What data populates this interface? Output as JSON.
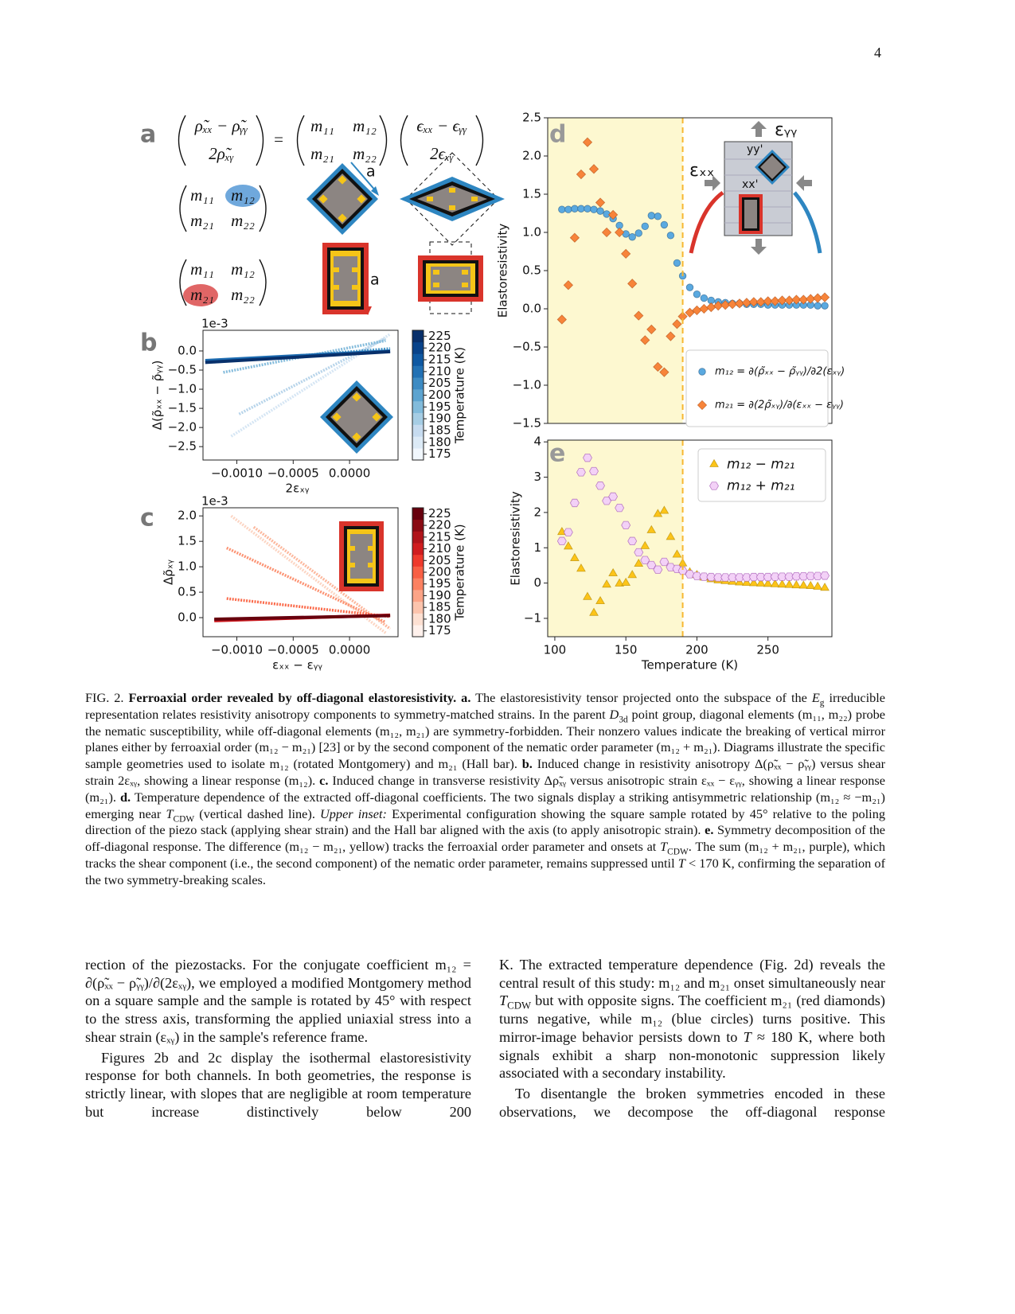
{
  "page_number": "4",
  "panel_a": {
    "label": "a",
    "lhs": [
      "ρ̃ₓₓ − ρ̃ᵧᵧ",
      "2ρ̃ₓᵧ"
    ],
    "equals": "=",
    "matrix": [
      "m₁₁",
      "m₁₂",
      "m₂₁",
      "m₂₂"
    ],
    "rhs": [
      "ϵₓₓ − ϵᵧᵧ",
      "2ϵₓᵧ"
    ],
    "axis_labels": [
      "a",
      "a"
    ]
  },
  "chart_data": [
    {
      "type": "line",
      "panel": "b",
      "offset_label": "1e-3",
      "xlabel": "2εₓᵧ",
      "ylabel": "Δ(ρ̃ₓₓ − ρ̃ᵧᵧ)",
      "xlim": [
        -0.0013,
        0.00043
      ],
      "ylim": [
        -2.85,
        0.54
      ],
      "xticks": [
        {
          "value": -0.001,
          "label": "−0.0010"
        },
        {
          "value": -0.0005,
          "label": "−0.0005"
        },
        {
          "value": 0,
          "label": "0.0000"
        }
      ],
      "yticks": [
        {
          "value": 0,
          "label": "0.0"
        },
        {
          "value": -0.5,
          "label": "−0.5"
        },
        {
          "value": -1,
          "label": "−1.0"
        },
        {
          "value": -1.5,
          "label": "−1.5"
        },
        {
          "value": -2,
          "label": "−2.0"
        },
        {
          "value": -2.5,
          "label": "−2.5"
        }
      ],
      "series": [
        {
          "color": "#d6e6f4",
          "x": [
            -0.00105,
            0.00036
          ],
          "values": [
            -2.23,
            0.44
          ]
        },
        {
          "color": "#b7d4ea",
          "x": [
            -0.00098,
            0.00032
          ],
          "values": [
            -1.65,
            0.33
          ]
        },
        {
          "color": "#85bcdc",
          "x": [
            -0.00112,
            0.00032
          ],
          "values": [
            -0.56,
            0.27
          ]
        },
        {
          "color": "#4a98c9",
          "x": [
            -0.0012,
            0.00036
          ],
          "values": [
            -0.29,
            0.06
          ]
        },
        {
          "color": "#1d6cb1",
          "x": [
            -0.00128,
            0.00036
          ],
          "values": [
            -0.25,
            0.0
          ]
        },
        {
          "color": "#08306b",
          "x": [
            -0.00128,
            0.00036
          ],
          "values": [
            -0.3,
            -0.02
          ]
        }
      ],
      "colorbar": {
        "label": "Temperature (K)",
        "ticks": [
          175,
          180,
          185,
          190,
          195,
          200,
          205,
          210,
          215,
          220,
          225
        ],
        "colors": [
          "#f1f7fd",
          "#dceaf6",
          "#c6dbef",
          "#a6cde4",
          "#82bbdb",
          "#5da4d0",
          "#3d8bc3",
          "#2271b4",
          "#0e58a2",
          "#08438a",
          "#08306b"
        ]
      }
    },
    {
      "type": "line",
      "panel": "c",
      "offset_label": "1e-3",
      "xlabel": "εₓₓ − εᵧᵧ",
      "ylabel": "Δρ̃ₓᵧ",
      "xlim": [
        -0.0013,
        0.00043
      ],
      "ylim": [
        -0.375,
        2.16
      ],
      "xticks": [
        {
          "value": -0.001,
          "label": "−0.0010"
        },
        {
          "value": -0.0005,
          "label": "−0.0005"
        },
        {
          "value": 0,
          "label": "0.0000"
        }
      ],
      "yticks": [
        {
          "value": 0,
          "label": "0.0"
        },
        0.5,
        {
          "value": 1,
          "label": "1.0"
        },
        1.5,
        {
          "value": 2,
          "label": "2.0"
        }
      ],
      "series": [
        {
          "color": "#fcd5c3",
          "x": [
            -0.00105,
            0.00032
          ],
          "values": [
            2.0,
            -0.3
          ]
        },
        {
          "color": "#fcb79c",
          "x": [
            -0.00085,
            0.00036
          ],
          "values": [
            1.78,
            -0.22
          ]
        },
        {
          "color": "#fc9272",
          "x": [
            -0.00109,
            0.00032
          ],
          "values": [
            1.37,
            -0.09
          ]
        },
        {
          "color": "#fb6a4a",
          "x": [
            -0.00109,
            0.00036
          ],
          "values": [
            0.375,
            0.02
          ]
        },
        {
          "color": "#cb181d",
          "x": [
            -0.0012,
            0.00036
          ],
          "values": [
            -0.06,
            0.05
          ]
        },
        {
          "color": "#67000d",
          "x": [
            -0.0012,
            0.00036
          ],
          "values": [
            -0.03,
            0.04
          ]
        }
      ],
      "colorbar": {
        "label": "Temperature (K)",
        "ticks": [
          175,
          180,
          185,
          190,
          195,
          200,
          205,
          210,
          215,
          220,
          225
        ],
        "colors": [
          "#fff1ec",
          "#fde0d2",
          "#fcc4ad",
          "#fca487",
          "#fc8161",
          "#f85f44",
          "#ee3a2c",
          "#d01d1f",
          "#b0141a",
          "#8a0b13",
          "#67000d"
        ]
      }
    },
    {
      "type": "scatter",
      "panel": "d",
      "ylabel": "Elastoresistivity",
      "xlim": [
        95,
        295
      ],
      "ylim": [
        -1.5,
        2.5
      ],
      "yticks": [
        {
          "value": -1.5,
          "label": "−1.5"
        },
        {
          "value": -1,
          "label": "−1.0"
        },
        {
          "value": -0.5,
          "label": "−0.5"
        },
        {
          "value": 0,
          "label": "0.0"
        },
        0.5,
        {
          "value": 1,
          "label": "1.0"
        },
        1.5,
        {
          "value": 2,
          "label": "2.0"
        },
        2.5
      ],
      "shade_until": 190,
      "vline": 190,
      "legend": "lower right",
      "inset_labels": [
        "εᵧᵧ",
        "εₓₓ",
        "yy'",
        "xx'"
      ],
      "x": [
        105,
        109.5,
        114,
        118.5,
        123,
        127.5,
        132,
        136.5,
        141,
        145.5,
        150,
        154.5,
        159,
        163.5,
        168,
        172.5,
        177,
        181.5,
        186,
        190,
        195,
        200,
        205,
        210,
        215,
        220,
        225,
        230,
        235,
        240,
        245,
        250,
        255,
        260,
        265,
        270,
        275,
        280,
        285,
        290
      ],
      "series": [
        {
          "name": "m₁₂ = ∂(ρ̃ₓₓ − ρ̃ᵧᵧ)/∂2(εₓᵧ)",
          "color": "#5aa9e0",
          "marker": "circle",
          "values": [
            1.3,
            1.3,
            1.31,
            1.31,
            1.31,
            1.3,
            1.28,
            1.24,
            1.18,
            1.09,
            0.98,
            0.94,
            0.99,
            1.08,
            1.22,
            1.21,
            1.1,
            0.96,
            0.6,
            0.43,
            0.28,
            0.19,
            0.14,
            0.11,
            0.09,
            0.08,
            0.07,
            0.07,
            0.06,
            0.06,
            0.06,
            0.05,
            0.05,
            0.05,
            0.05,
            0.05,
            0.05,
            0.05,
            0.04,
            0.04
          ]
        },
        {
          "name": "m₂₁ = ∂(2ρ̃ₓᵧ)/∂(εₓₓ − εᵧᵧ)",
          "color": "#f7843a",
          "marker": "diamond",
          "values": [
            -0.14,
            0.31,
            0.93,
            1.76,
            2.18,
            1.83,
            1.39,
            1.0,
            1.23,
            1.0,
            0.72,
            0.33,
            -0.09,
            -0.41,
            -0.27,
            -0.76,
            -0.83,
            -0.36,
            -0.2,
            -0.1,
            -0.05,
            -0.02,
            0.0,
            0.02,
            0.04,
            0.05,
            0.06,
            0.07,
            0.08,
            0.09,
            0.09,
            0.1,
            0.1,
            0.11,
            0.11,
            0.12,
            0.12,
            0.13,
            0.14,
            0.15
          ]
        }
      ]
    },
    {
      "type": "scatter",
      "panel": "e",
      "xlabel": "Temperature (K)",
      "ylabel": "Elastoresistivity",
      "xlim": [
        95,
        295
      ],
      "ylim": [
        -1.52,
        4.05
      ],
      "xticks": [
        100,
        150,
        200,
        250
      ],
      "yticks": [
        {
          "value": -1,
          "label": "−1"
        },
        0,
        1,
        2,
        3,
        4
      ],
      "shade_until": 190,
      "vline": 190,
      "legend": "upper right",
      "x": [
        105,
        109.5,
        114,
        118.5,
        123,
        127.5,
        132,
        136.5,
        141,
        145.5,
        150,
        154.5,
        159,
        163.5,
        168,
        172.5,
        177,
        181.5,
        186,
        190,
        195,
        200,
        205,
        210,
        215,
        220,
        225,
        230,
        235,
        240,
        245,
        250,
        255,
        260,
        265,
        270,
        275,
        280,
        285,
        290
      ],
      "series": [
        {
          "name": "m₁₂ − m₂₁",
          "color": "#fcc419",
          "marker": "triangle",
          "values": [
            1.44,
            1.03,
            0.7,
            0.4,
            -0.4,
            -0.85,
            -0.52,
            -0.05,
            0.27,
            -0.02,
            0.0,
            0.22,
            0.54,
            1.04,
            1.49,
            1.95,
            2.04,
            1.3,
            0.8,
            0.55,
            0.3,
            0.22,
            0.15,
            0.1,
            0.07,
            0.05,
            0.03,
            0.01,
            0.0,
            -0.01,
            -0.02,
            -0.03,
            -0.04,
            -0.05,
            -0.06,
            -0.07,
            -0.08,
            -0.09,
            -0.11,
            -0.14
          ]
        },
        {
          "name": "m₁₂ + m₂₁",
          "color": "#f3d1f7",
          "marker": "hexagon",
          "values": [
            1.19,
            1.44,
            2.27,
            3.14,
            3.55,
            3.17,
            2.76,
            2.33,
            2.45,
            2.13,
            1.64,
            1.19,
            0.87,
            0.65,
            0.51,
            0.38,
            0.6,
            0.45,
            0.4,
            0.35,
            0.25,
            0.2,
            0.18,
            0.17,
            0.16,
            0.16,
            0.16,
            0.16,
            0.16,
            0.17,
            0.17,
            0.17,
            0.18,
            0.18,
            0.18,
            0.19,
            0.19,
            0.2,
            0.2,
            0.21
          ]
        }
      ]
    }
  ],
  "caption": [
    "FIG. 2. ",
    [
      "Ferroaxial order revealed by off-diagonal elastoresistivity.",
      "b"
    ],
    " ",
    [
      "a.",
      "b"
    ],
    " The elastoresistivity tensor projected onto the subspace of the ",
    [
      "E",
      "i"
    ],
    [
      "g",
      "sub"
    ],
    " irreducible representation relates resistivity anisotropy components to symmetry-matched strains. In the parent ",
    [
      "D",
      "i"
    ],
    [
      "3d",
      "sub"
    ],
    " point group, diagonal elements (m₁₁, m₂₂) probe the nematic susceptibility, while off-diagonal elements (m₁₂, m₂₁) are symmetry-forbidden. Their nonzero values indicate the breaking of vertical mirror planes either by ferroaxial order (m₁₂ − m₂₁) [23] or by the second component of the nematic order parameter (m₁₂ + m₂₁). Diagrams illustrate the specific sample geometries used to isolate m₁₂ (rotated Montgomery) and m₂₁ (Hall bar). ",
    [
      "b.",
      "b"
    ],
    " Induced change in resistivity anisotropy Δ(ρ̃ₓₓ − ρ̃ᵧᵧ) versus shear strain 2εₓᵧ, showing a linear response (m₁₂). ",
    [
      "c.",
      "b"
    ],
    " Induced change in transverse resistivity Δρ̃ₓᵧ versus anisotropic strain εₓₓ − εᵧᵧ, showing a linear response (m₂₁). ",
    [
      "d.",
      "b"
    ],
    " Temperature dependence of the extracted off-diagonal coefficients. The two signals display a striking antisymmetric relationship (m₁₂ ≈ −m₂₁) emerging near ",
    [
      "T",
      "i"
    ],
    [
      "CDW",
      "sub"
    ],
    " (vertical dashed line). ",
    [
      "Upper inset:",
      "i"
    ],
    " Experimental configuration showing the square sample rotated by 45° relative to the poling direction of the piezo stack (applying shear strain) and the Hall bar aligned with the axis (to apply anisotropic strain). ",
    [
      "e.",
      "b"
    ],
    " Symmetry decomposition of the off-diagonal response. The difference (m₁₂ − m₂₁, yellow) tracks the ferroaxial order parameter and onsets at ",
    [
      "T",
      "i"
    ],
    [
      "CDW",
      "sub"
    ],
    ". The sum (m₁₂ + m₂₁, purple), which tracks the shear component (i.e., the second component) of the nematic order parameter, remains suppressed until ",
    [
      "T",
      "i"
    ],
    " < 170 K, confirming the separation of the two symmetry-breaking scales."
  ],
  "body": {
    "left": [
      [
        "rection of the piezostacks. For the conjugate coefficient m₁₂ = ∂(ρ̃ₓₓ − ρ̃ᵧᵧ)/∂(2εₓᵧ), we employed a modified Montgomery method on a square sample and the sample is rotated by 45° with respect to the stress axis, transforming the applied uniaxial stress into a shear strain (εₓᵧ) in the sample's reference frame."
      ],
      [
        "Figures 2b and 2c display the isothermal elastoresistivity response for both channels. In both geometries, the response is strictly linear, with slopes that are negligible at room temperature but increase distinctively below 200"
      ]
    ],
    "right": [
      [
        "K. The extracted temperature dependence (Fig. 2d) reveals the central result of this study: m₁₂ and m₂₁ onset simultaneously near ",
        [
          "T",
          "i"
        ],
        [
          "CDW",
          "sub"
        ],
        " but with opposite signs. The coefficient m₂₁ (red diamonds) turns negative, while m₁₂ (blue circles) turns positive. This mirror-image behavior persists down to ",
        [
          "T",
          "i"
        ],
        " ≈ 180 K, where both signals exhibit a sharp non-monotonic suppression likely associated with a secondary instability."
      ],
      [
        "To disentangle the broken symmetries encoded in these observations, we decompose the off-diagonal response"
      ]
    ]
  }
}
